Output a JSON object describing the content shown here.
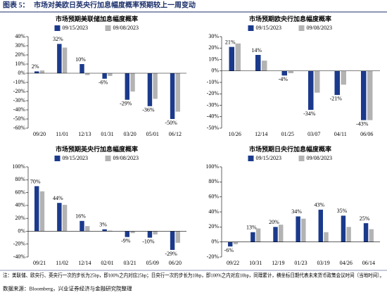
{
  "header": {
    "label": "图表 5：",
    "title": "市场对美欧日英央行加息幅度概率预期较上一周变动"
  },
  "notes": [
    "注：美联储、欧央行、英央行一次的步长为25bp，即100%之内对应25bp；日央行一次的步长为10bp，即100%之内对应10bp，同理累计，横坐标日期代表未来货币政策会议时间（当地时间）。",
    "数据来源：Bloomberg，兴业证券经济与金融研究院整理"
  ],
  "chart_data": [
    {
      "type": "bar",
      "title": "市场预期美联储加息幅度概率",
      "categories": [
        "09/20",
        "11/01",
        "12/13",
        "01/31",
        "03/20",
        "05/01",
        "06/12"
      ],
      "series": [
        {
          "name": "09/15/2023",
          "color": "#1b3a8c",
          "values": [
            2,
            32,
            10,
            -6,
            -29,
            -36,
            -50
          ],
          "value_labels": [
            "2%",
            "32%",
            "10%",
            "-6%",
            "-29%",
            "-36%",
            "-50%"
          ]
        },
        {
          "name": "09/08/2023",
          "color": "#b3b3b3",
          "values": [
            3,
            28,
            -2,
            -3,
            -20,
            -28,
            -42
          ]
        }
      ],
      "ylim": [
        -60,
        40
      ],
      "yticks": [
        {
          "value": -60,
          "label": "-60%"
        },
        {
          "value": -50,
          "label": "-50%"
        },
        {
          "value": -40,
          "label": "-40%"
        },
        {
          "value": -30,
          "label": "-30%"
        },
        {
          "value": -20,
          "label": "-20%"
        },
        {
          "value": -10,
          "label": "-10%"
        },
        {
          "value": 0,
          "label": "0%"
        },
        {
          "value": 10,
          "label": "10%"
        },
        {
          "value": 20,
          "label": "20%"
        },
        {
          "value": 30,
          "label": "30%"
        },
        {
          "value": 40,
          "label": "40%"
        }
      ],
      "legend": "top"
    },
    {
      "type": "bar",
      "title": "市场预期欧央行加息幅度概率",
      "categories": [
        "10/26",
        "12/14",
        "01/25",
        "03/07",
        "04/11",
        "06/06"
      ],
      "series": [
        {
          "name": "09/15/2023",
          "color": "#1b3a8c",
          "values": [
            21,
            14,
            -4,
            -34,
            -21,
            -43
          ],
          "value_labels": [
            "21%",
            "14%",
            "-4%",
            "-34%",
            "-21%",
            "-43%"
          ]
        },
        {
          "name": "09/08/2023",
          "color": "#b3b3b3",
          "values": [
            24,
            9,
            -2,
            -19,
            -12,
            -43
          ]
        }
      ],
      "ylim": [
        -50,
        30
      ],
      "yticks": [
        {
          "value": -50,
          "label": "-50%"
        },
        {
          "value": -40,
          "label": "-40%"
        },
        {
          "value": -30,
          "label": "-30%"
        },
        {
          "value": -20,
          "label": "-20%"
        },
        {
          "value": -10,
          "label": "-10%"
        },
        {
          "value": 0,
          "label": "0%"
        },
        {
          "value": 10,
          "label": "10%"
        },
        {
          "value": 20,
          "label": "20%"
        },
        {
          "value": 30,
          "label": "30%"
        }
      ],
      "legend": "top"
    },
    {
      "type": "bar",
      "title": "市场预期英央行加息幅度概率",
      "categories": [
        "09/21",
        "11/02",
        "12/14",
        "02/01",
        "03/21",
        "05/09",
        "06/20"
      ],
      "series": [
        {
          "name": "09/15/2023",
          "color": "#1b3a8c",
          "values": [
            70,
            44,
            16,
            3,
            -9,
            -10,
            -29
          ],
          "value_labels": [
            "70%",
            "44%",
            "16%",
            "3%",
            "-9%",
            "-10%",
            "-29%"
          ]
        },
        {
          "name": "09/08/2023",
          "color": "#b3b3b3",
          "values": [
            62,
            41,
            8,
            1,
            -3,
            -5,
            -18
          ]
        }
      ],
      "ylim": [
        -40,
        100
      ],
      "yticks": [
        {
          "value": -40,
          "label": "-40%"
        },
        {
          "value": -20,
          "label": "-20%"
        },
        {
          "value": 0,
          "label": "0%"
        },
        {
          "value": 20,
          "label": "20%"
        },
        {
          "value": 40,
          "label": "40%"
        },
        {
          "value": 60,
          "label": "60%"
        },
        {
          "value": 80,
          "label": "80%"
        },
        {
          "value": 100,
          "label": "100%"
        }
      ],
      "legend": "top"
    },
    {
      "type": "bar",
      "title": "市场预期日央行加息幅度概率",
      "categories": [
        "09/22",
        "10/31",
        "12/19",
        "01/23",
        "03/19",
        "04/26",
        "06/14"
      ],
      "series": [
        {
          "name": "09/15/2023",
          "color": "#1b3a8c",
          "values": [
            -6,
            13,
            20,
            34,
            43,
            35,
            25
          ],
          "value_labels": [
            "-6%",
            "13%",
            "20%",
            "34%",
            "43%",
            "35%",
            "25%"
          ]
        },
        {
          "name": "09/08/2023",
          "color": "#b3b3b3",
          "values": [
            -3,
            18,
            23,
            31,
            13,
            20,
            17
          ]
        }
      ],
      "ylim": [
        -20,
        100
      ],
      "yticks": [
        {
          "value": -20,
          "label": "-20%"
        },
        {
          "value": 0,
          "label": "0%"
        },
        {
          "value": 20,
          "label": "20%"
        },
        {
          "value": 40,
          "label": "40%"
        },
        {
          "value": 60,
          "label": "60%"
        },
        {
          "value": 80,
          "label": "80%"
        },
        {
          "value": 100,
          "label": "100%"
        }
      ],
      "legend": "top"
    }
  ]
}
